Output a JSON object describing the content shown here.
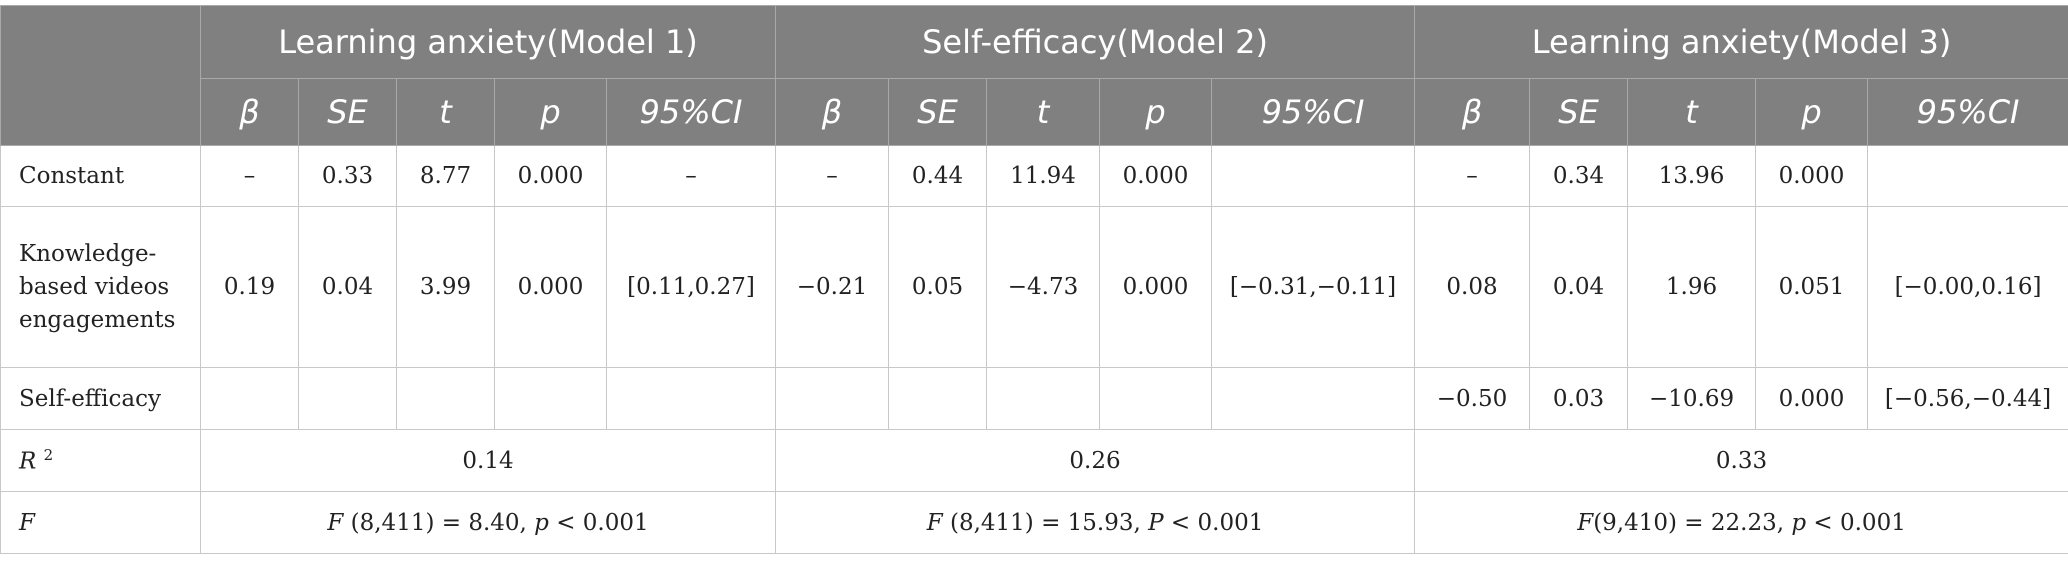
{
  "table": {
    "groups": [
      "Learning anxiety(Model 1)",
      "Self-efficacy(Model 2)",
      "Learning anxiety(Model 3)"
    ],
    "subheaders": {
      "m1": [
        "β",
        "SE",
        "t",
        "p",
        "95%CI"
      ],
      "m2": [
        "β",
        "SE",
        "t",
        "p",
        "95%CI"
      ],
      "m3": [
        "β",
        "SE",
        "t",
        "p",
        "95%CI"
      ]
    },
    "rows": {
      "constant": {
        "label": "Constant",
        "m1": [
          "–",
          "0.33",
          "8.77",
          "0.000",
          "–"
        ],
        "m2": [
          "–",
          "0.44",
          "11.94",
          "0.000",
          ""
        ],
        "m3": [
          "–",
          "0.34",
          "13.96",
          "0.000",
          ""
        ]
      },
      "kbv": {
        "label": "Knowledge-based videos engagements",
        "m1": [
          "0.19",
          "0.04",
          "3.99",
          "0.000",
          "[0.11,0.27]"
        ],
        "m2": [
          "−0.21",
          "0.05",
          "−4.73",
          "0.000",
          "[−0.31,−0.11]"
        ],
        "m3": [
          "0.08",
          "0.04",
          "1.96",
          "0.051",
          "[−0.00,0.16]"
        ]
      },
      "self_efficacy": {
        "label": "Self-efficacy",
        "m1": [
          "",
          "",
          "",
          "",
          ""
        ],
        "m2": [
          "",
          "",
          "",
          "",
          ""
        ],
        "m3": [
          "−0.50",
          "0.03",
          "−10.69",
          "0.000",
          "[−0.56,−0.44]"
        ]
      }
    },
    "r2": {
      "label_r": "R",
      "label_sup": "2",
      "values": [
        "0.14",
        "0.26",
        "0.33"
      ]
    },
    "f": {
      "label": "F",
      "m1": {
        "f": "F",
        "rest": " (8,411) = 8.40, ",
        "p": "p",
        "tail": " < 0.001"
      },
      "m2": {
        "f": "F",
        "rest": " (8,411) = 15.93, ",
        "p": "P",
        "tail": " < 0.001"
      },
      "m3": {
        "f": "F",
        "rest": "(9,410) = 22.23, ",
        "p": "p",
        "tail": " < 0.001"
      }
    }
  }
}
